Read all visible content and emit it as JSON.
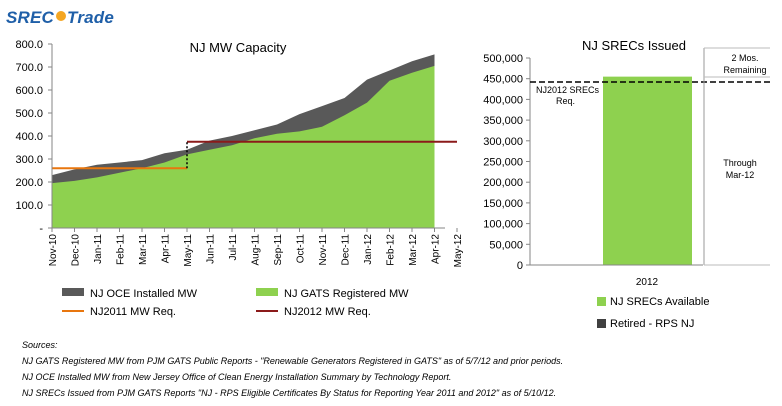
{
  "logo": {
    "part1": "SREC",
    "part2": "Trade"
  },
  "chart_data": [
    {
      "type": "area",
      "title": "NJ MW Capacity",
      "categories": [
        "Nov-10",
        "Dec-10",
        "Jan-11",
        "Feb-11",
        "Mar-11",
        "Apr-11",
        "May-11",
        "Jun-11",
        "Jul-11",
        "Aug-11",
        "Sep-11",
        "Oct-11",
        "Nov-11",
        "Dec-11",
        "Jan-12",
        "Feb-12",
        "Mar-12",
        "Apr-12",
        "May-12"
      ],
      "y_ticks": [
        "-",
        "100.0",
        "200.0",
        "300.0",
        "400.0",
        "500.0",
        "600.0",
        "700.0",
        "800.0"
      ],
      "ylim": [
        0,
        800
      ],
      "series": [
        {
          "name": "NJ OCE Installed MW",
          "color": "#595959",
          "values": [
            230,
            255,
            275,
            285,
            295,
            325,
            340,
            380,
            400,
            425,
            450,
            495,
            530,
            565,
            645,
            685,
            725,
            755,
            null
          ]
        },
        {
          "name": "NJ GATS Registered MW",
          "color": "#8ed14f",
          "values": [
            195,
            205,
            220,
            240,
            260,
            285,
            320,
            340,
            360,
            390,
            410,
            420,
            440,
            490,
            545,
            640,
            675,
            705,
            null
          ]
        },
        {
          "name": "NJ2011 MW Req.",
          "color": "#e8760e",
          "type": "step",
          "from": "Nov-10",
          "to": "May-11",
          "value": 260
        },
        {
          "name": "NJ2012 MW Req.",
          "color": "#8b1a1a",
          "type": "step",
          "from": "May-11",
          "to": "May-12",
          "value": 375
        }
      ],
      "legend": [
        {
          "label": "NJ OCE Installed MW",
          "color": "#595959",
          "kind": "block"
        },
        {
          "label": "NJ GATS Registered MW",
          "color": "#8ed14f",
          "kind": "block"
        },
        {
          "label": "NJ2011 MW Req.",
          "color": "#e8760e",
          "kind": "line"
        },
        {
          "label": "NJ2012 MW Req.",
          "color": "#8b1a1a",
          "kind": "line"
        }
      ],
      "grid": false
    },
    {
      "type": "bar",
      "title": "NJ SRECs Issued",
      "categories": [
        "2012"
      ],
      "series": [
        {
          "name": "NJ SRECs Available",
          "color": "#8ed14f",
          "values": [
            455000
          ]
        },
        {
          "name": "Retired - RPS NJ",
          "color": "#404040",
          "values": [
            0
          ]
        }
      ],
      "y_ticks": [
        "0",
        "50,000",
        "100,000",
        "150,000",
        "200,000",
        "250,000",
        "300,000",
        "350,000",
        "400,000",
        "450,000",
        "500,000"
      ],
      "ylim": [
        0,
        500000
      ],
      "requirement": {
        "label_line1": "NJ2012 SRECs",
        "label_line2": "Req.",
        "value": 442000
      },
      "annotations": [
        {
          "line1": "2 Mos.",
          "line2": "Remaining",
          "from": 442000,
          "to": 520000
        },
        {
          "line1": "Through",
          "line2": "Mar-12",
          "from": 0,
          "to": 442000
        }
      ],
      "legend": [
        {
          "label": "NJ SRECs Available",
          "color": "#8ed14f"
        },
        {
          "label": "Retired - RPS NJ",
          "color": "#404040"
        }
      ],
      "grid": false
    }
  ],
  "sources": {
    "heading": "Sources:",
    "lines": [
      "NJ GATS Registered MW from PJM GATS Public Reports - \"Renewable Generators Registered in GATS\" as of 5/7/12 and prior periods.",
      "NJ OCE Installed MW from New Jersey Office of Clean Energy Installation Summary by Technology Report.",
      "NJ SRECs Issued from PJM GATS Reports \"NJ - RPS Eligible Certificates By Status for Reporting Year 2011 and 2012\" as of 5/10/12."
    ]
  }
}
